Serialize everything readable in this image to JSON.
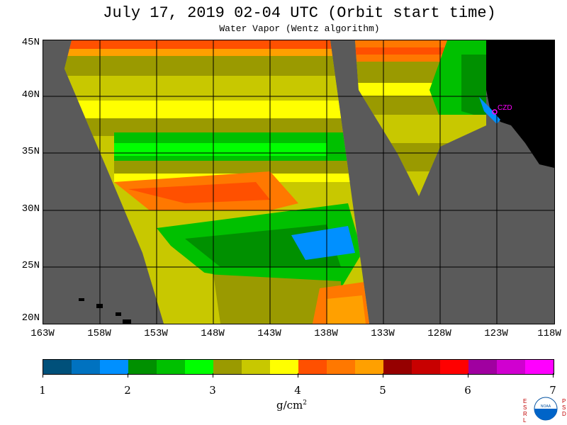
{
  "header": {
    "title": "July 17, 2019  02-04 UTC  (Orbit start time)",
    "subtitle": "Water Vapor (Wentz algorithm)"
  },
  "map": {
    "lat_labels": [
      "45N",
      "40N",
      "35N",
      "30N",
      "25N",
      "20N"
    ],
    "lon_labels": [
      "163W",
      "158W",
      "153W",
      "148W",
      "143W",
      "138W",
      "133W",
      "128W",
      "123W",
      "118W"
    ],
    "station_label": "CZD",
    "colors": {
      "no_data": "#5a5a5a",
      "land": "#000000",
      "station": "#ff00ff"
    }
  },
  "colorbar": {
    "colors": [
      "#00507a",
      "#0072c0",
      "#0090ff",
      "#009000",
      "#00c000",
      "#00ff00",
      "#9a9a00",
      "#c8c800",
      "#ffff00",
      "#ff5000",
      "#ff7800",
      "#ffa000",
      "#960000",
      "#c80000",
      "#ff0000",
      "#a000a0",
      "#d000d0",
      "#ff00ff"
    ],
    "tick_labels": [
      "1",
      "2",
      "3",
      "4",
      "5",
      "6",
      "7"
    ],
    "units_base": "g/cm",
    "units_exp": "2"
  },
  "logo": {
    "left_letters": "ESRL",
    "right_letters": "PSD",
    "center_text": "NOAA"
  }
}
